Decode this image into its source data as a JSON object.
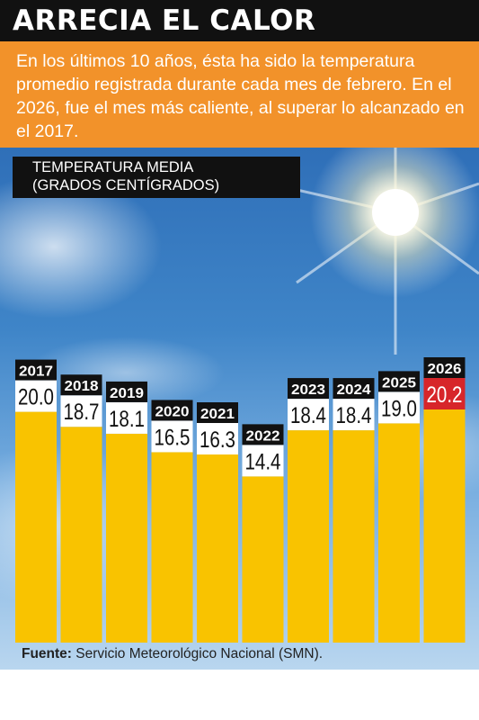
{
  "header": {
    "title": "ARRECIA EL CALOR",
    "subtitle": "En los últimos 10 años, ésta ha sido la temperatura promedio registrada durante cada mes de febrero. En el 2026, fue el mes más caliente, al superar lo alcanzado en el 2017."
  },
  "colors": {
    "bar": "#f9c300",
    "highlight_label": "#d7262a",
    "header_bg": "#111111",
    "subtitle_bg": "#f2922a"
  },
  "chart_data": {
    "type": "bar",
    "ylabel_line1": "TEMPERATURA MEDIA",
    "ylabel_line2": "(GRADOS CENTÍGRADOS)",
    "categories": [
      "2017",
      "2018",
      "2019",
      "2020",
      "2021",
      "2022",
      "2023",
      "2024",
      "2025",
      "2026"
    ],
    "values": [
      20.0,
      18.7,
      18.1,
      16.5,
      16.3,
      14.4,
      18.4,
      18.4,
      19.0,
      20.2
    ],
    "value_labels": [
      "20.0",
      "18.7",
      "18.1",
      "16.5",
      "16.3",
      "14.4",
      "18.4",
      "18.4",
      "19.0",
      "20.2"
    ],
    "highlight": "2026",
    "ylim": [
      0,
      20.2
    ],
    "grid": false,
    "legend": "none"
  },
  "source": {
    "label": "Fuente:",
    "text": "Servicio Meteorológico Nacional (SMN)."
  }
}
